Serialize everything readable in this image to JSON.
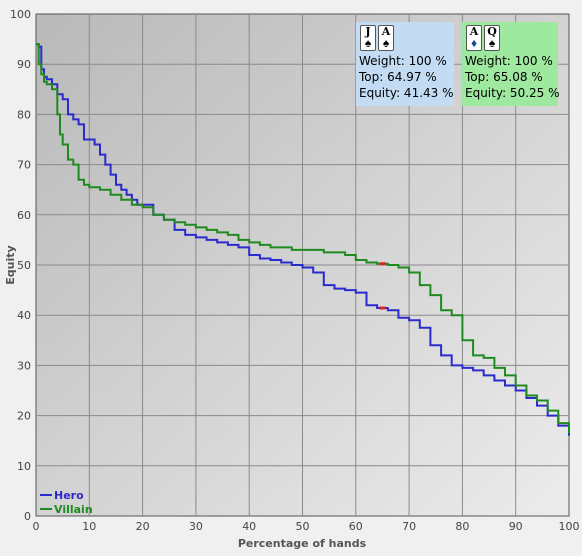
{
  "chart_data": {
    "type": "line",
    "xlabel": "Percentage of hands",
    "ylabel": "Equity",
    "xlim": [
      0,
      100
    ],
    "ylim": [
      0,
      100
    ],
    "xticks": [
      "0",
      "10",
      "20",
      "30",
      "40",
      "50",
      "60",
      "70",
      "80",
      "90",
      "100"
    ],
    "yticks": [
      "0",
      "10",
      "20",
      "30",
      "40",
      "50",
      "60",
      "70",
      "80",
      "90",
      "100"
    ],
    "grid": true,
    "legend_position": "bottom-left",
    "series": [
      {
        "name": "Hero",
        "color": "#2b2bcc",
        "x": [
          0,
          0.5,
          1,
          1.5,
          2,
          3,
          4,
          5,
          6,
          7,
          8,
          9,
          10,
          11,
          12,
          13,
          14,
          15,
          16,
          17,
          18,
          19,
          20,
          22,
          24,
          26,
          28,
          30,
          32,
          34,
          36,
          38,
          40,
          42,
          44,
          46,
          48,
          50,
          52,
          54,
          56,
          58,
          60,
          62,
          64,
          66,
          68,
          70,
          72,
          74,
          76,
          78,
          80,
          82,
          84,
          86,
          88,
          90,
          92,
          94,
          96,
          98,
          100
        ],
        "y": [
          94,
          93.5,
          89,
          87.5,
          87,
          86,
          84,
          83,
          80,
          79,
          78,
          75,
          75,
          74,
          72,
          70,
          68,
          66,
          65,
          64,
          63,
          62,
          62,
          60,
          59,
          57,
          56,
          55.5,
          55,
          54.5,
          54,
          53.5,
          52,
          51.3,
          51,
          50.5,
          50,
          49.5,
          48.5,
          46,
          45.3,
          45,
          44.5,
          42,
          41.43,
          41,
          39.5,
          39,
          37.5,
          34,
          32,
          30,
          29.5,
          29,
          28,
          27,
          26,
          25,
          23.5,
          22,
          20,
          18,
          16
        ]
      },
      {
        "name": "Villain",
        "color": "#1f8a1f",
        "x": [
          0,
          0.5,
          1,
          1.5,
          2,
          3,
          4,
          4.5,
          5,
          6,
          7,
          8,
          9,
          10,
          12,
          14,
          16,
          18,
          20,
          22,
          24,
          26,
          28,
          30,
          32,
          34,
          36,
          38,
          40,
          42,
          44,
          46,
          48,
          50,
          52,
          54,
          56,
          58,
          60,
          62,
          64,
          66,
          68,
          70,
          72,
          74,
          76,
          78,
          80,
          82,
          84,
          86,
          88,
          90,
          92,
          94,
          96,
          98,
          100
        ],
        "y": [
          94,
          90,
          88,
          86.5,
          86,
          85,
          80,
          76,
          74,
          71,
          70,
          67,
          66,
          65.5,
          65,
          64,
          63,
          62,
          61.5,
          60,
          59,
          58.5,
          58,
          57.5,
          57,
          56.5,
          56,
          55,
          54.5,
          54,
          53.5,
          53.5,
          53,
          53,
          53,
          52.5,
          52.5,
          52,
          51,
          50.5,
          50.25,
          50,
          49.5,
          48.5,
          46,
          44,
          41,
          40,
          35,
          32,
          31.5,
          29.5,
          28,
          26,
          24,
          23,
          21,
          18.5,
          16.5
        ]
      }
    ],
    "markers": [
      {
        "series": "Hero",
        "x": 64.97,
        "y": 41.43,
        "color": "#dd2222"
      },
      {
        "series": "Villain",
        "x": 65.08,
        "y": 50.25,
        "color": "#dd2222"
      }
    ]
  },
  "panels": {
    "hero": {
      "cards": [
        {
          "rank": "J",
          "suit": "♠",
          "suit_color": "#000000"
        },
        {
          "rank": "A",
          "suit": "♠",
          "suit_color": "#000000"
        }
      ],
      "weight": "Weight: 100 %",
      "top": "Top: 64.97 %",
      "equity": "Equity: 41.43 %",
      "background": "#c4dcf3"
    },
    "villain": {
      "cards": [
        {
          "rank": "A",
          "suit": "♦",
          "suit_color": "#1a4a8a"
        },
        {
          "rank": "Q",
          "suit": "♠",
          "suit_color": "#000000"
        }
      ],
      "weight": "Weight: 100 %",
      "top": "Top: 65.08 %",
      "equity": "Equity: 50.25 %",
      "background": "#9fe89f"
    }
  }
}
